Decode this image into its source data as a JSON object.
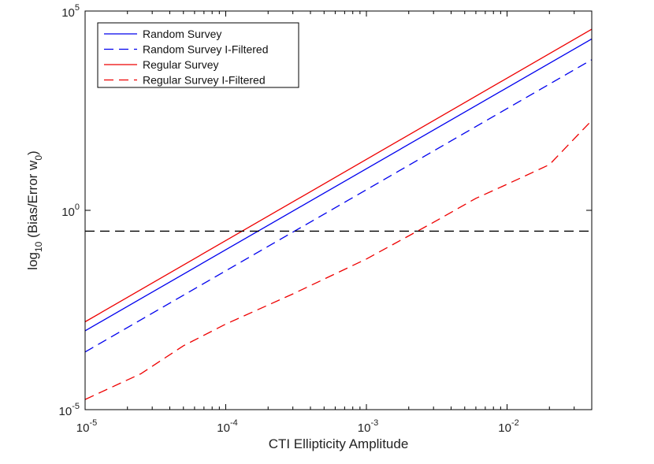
{
  "chart_data": {
    "type": "line",
    "title": "",
    "xlabel": "CTI Ellipticity Amplitude",
    "ylabel": "log10 (Bias/Error w0)",
    "ylabel_parts": {
      "pre": "log",
      "sub": "10",
      "mid": " (Bias/Error w",
      "sub2": "0",
      "post": ")"
    },
    "x_scale": "log",
    "y_scale": "log",
    "xlim": [
      1e-05,
      0.04
    ],
    "ylim": [
      1e-05,
      100000
    ],
    "x_ticks": [
      {
        "value": 1e-05,
        "base": "10",
        "exp": "-5"
      },
      {
        "value": 0.0001,
        "base": "10",
        "exp": "-4"
      },
      {
        "value": 0.001,
        "base": "10",
        "exp": "-3"
      },
      {
        "value": 0.01,
        "base": "10",
        "exp": "-2"
      }
    ],
    "y_ticks": [
      {
        "value": 1e-05,
        "base": "10",
        "exp": "-5"
      },
      {
        "value": 1,
        "base": "10",
        "exp": "0"
      },
      {
        "value": 100000,
        "base": "10",
        "exp": "5"
      }
    ],
    "legend_position": "top-left",
    "series": [
      {
        "name": "Random Survey",
        "color": "#0000ee",
        "style": "solid",
        "x": [
          1e-05,
          0.04
        ],
        "y": [
          0.00095,
          20000
        ]
      },
      {
        "name": "Random Survey I-Filtered",
        "color": "#0000ee",
        "style": "dashed",
        "x": [
          1e-05,
          0.04
        ],
        "y": [
          0.00028,
          6000
        ]
      },
      {
        "name": "Regular Survey",
        "color": "#ee0000",
        "style": "solid",
        "x": [
          1e-05,
          0.04
        ],
        "y": [
          0.0016,
          35000
        ]
      },
      {
        "name": "Regular Survey I-Filtered",
        "color": "#ee0000",
        "style": "dashed",
        "x": [
          1e-05,
          2.5e-05,
          5e-05,
          0.0001,
          0.0003,
          0.001,
          0.003,
          0.006,
          0.01,
          0.02,
          0.04
        ],
        "y": [
          1.8e-05,
          8e-05,
          0.0004,
          0.0014,
          0.008,
          0.06,
          0.5,
          2.0,
          4.5,
          14,
          180
        ]
      }
    ],
    "reference_line": {
      "orientation": "horizontal",
      "y": 0.3,
      "color": "#000000",
      "style": "dashed"
    }
  }
}
